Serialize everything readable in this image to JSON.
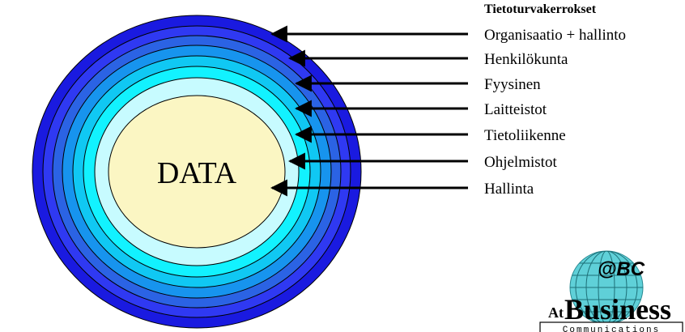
{
  "diagram": {
    "legend_title": "Tietoturvakerrokset",
    "center_label": "DATA",
    "layers": [
      {
        "label": "Organisaatio + hallinto",
        "color": "#1a1ae0"
      },
      {
        "label": "Henkilökunta",
        "color": "#2f39f2"
      },
      {
        "label": "Fyysinen",
        "color": "#2b63e4"
      },
      {
        "label": "Laitteistot",
        "color": "#1794ee"
      },
      {
        "label": "Tietoliikenne",
        "color": "#10c8f3"
      },
      {
        "label": "Ohjelmistot",
        "color": "#12f2ff"
      },
      {
        "label": "Hallinta",
        "color": "#c7fbff"
      }
    ],
    "core_color": "#fbf6c3"
  },
  "logo": {
    "at": "At",
    "brand": "Business",
    "abc": "@BC",
    "tagline": "Communications",
    "globe_color": "#5fd0d8"
  }
}
